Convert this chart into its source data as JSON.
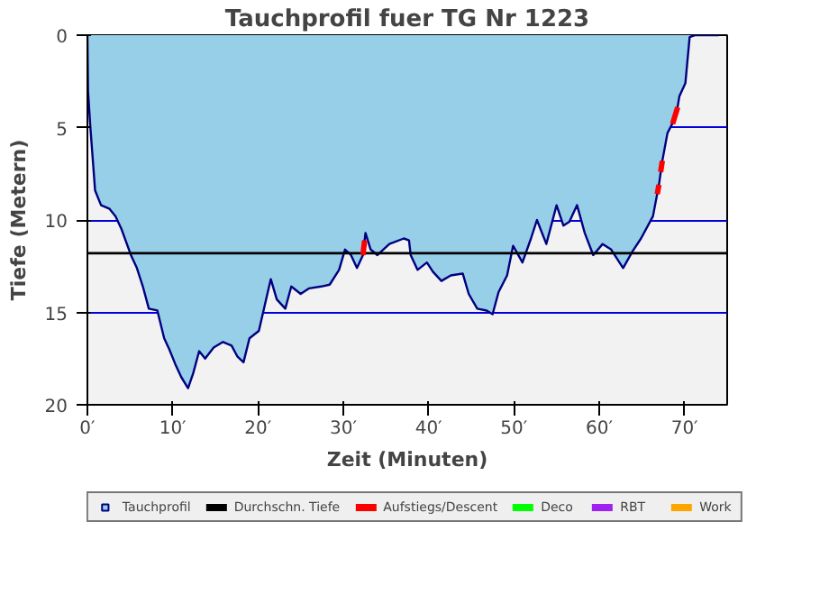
{
  "chart_data": {
    "type": "area",
    "title": "Tauchprofil fuer TG Nr 1223",
    "xlabel": "Zeit (Minuten)",
    "ylabel": "Tiefe (Metern)",
    "xlim": [
      0,
      75
    ],
    "ylim": [
      20,
      0
    ],
    "xticks": [
      {
        "value": 0,
        "label": "0′"
      },
      {
        "value": 10,
        "label": "10′"
      },
      {
        "value": 20,
        "label": "20′"
      },
      {
        "value": 30,
        "label": "30′"
      },
      {
        "value": 40,
        "label": "40′"
      },
      {
        "value": 50,
        "label": "50′"
      },
      {
        "value": 60,
        "label": "60′"
      },
      {
        "value": 70,
        "label": "70′"
      }
    ],
    "yticks": [
      0,
      5,
      10,
      15,
      20
    ],
    "grid": "y",
    "legend": "bottom",
    "series": [
      {
        "name": "Tauchprofil",
        "color": "#97cfe8",
        "x": [
          0,
          0.07,
          0.35,
          0.9,
          1.6,
          2.6,
          3.3,
          4.0,
          5.1,
          5.8,
          6.5,
          7.2,
          8.2,
          9.0,
          9.6,
          10.3,
          11.0,
          11.8,
          12.4,
          13.1,
          13.8,
          14.8,
          15.9,
          16.9,
          17.6,
          18.3,
          19.0,
          20.1,
          20.8,
          21.5,
          22.2,
          23.2,
          23.9,
          25.0,
          26.0,
          27.4,
          28.4,
          29.5,
          30.2,
          30.9,
          31.6,
          32.3,
          32.6,
          33.2,
          34.0,
          35.4,
          37.1,
          37.7,
          37.9,
          38.7,
          39.8,
          40.5,
          41.5,
          42.6,
          44.0,
          44.7,
          45.7,
          46.8,
          47.5,
          48.2,
          49.2,
          49.9,
          51.0,
          52.0,
          52.7,
          53.8,
          55.0,
          55.8,
          56.5,
          57.4,
          58.3,
          59.3,
          60.4,
          61.4,
          62.8,
          63.9,
          64.9,
          66.3,
          67.0,
          67.4,
          68.0,
          69.0,
          69.4,
          70.1,
          70.6,
          71.2,
          74.0
        ],
        "values": [
          0,
          3.0,
          5.0,
          8.4,
          9.2,
          9.4,
          9.8,
          10.5,
          11.9,
          12.6,
          13.6,
          14.8,
          14.9,
          16.4,
          17.0,
          17.8,
          18.5,
          19.1,
          18.3,
          17.1,
          17.5,
          16.9,
          16.6,
          16.8,
          17.4,
          17.7,
          16.4,
          16.0,
          14.6,
          13.2,
          14.3,
          14.8,
          13.6,
          14.0,
          13.7,
          13.6,
          13.5,
          12.7,
          11.6,
          11.9,
          12.6,
          11.9,
          10.7,
          11.6,
          11.9,
          11.3,
          11.0,
          11.1,
          11.9,
          12.7,
          12.3,
          12.8,
          13.3,
          13.0,
          12.9,
          14.0,
          14.8,
          14.9,
          15.1,
          13.9,
          13.0,
          11.4,
          12.3,
          11.0,
          10.0,
          11.3,
          9.2,
          10.3,
          10.1,
          9.2,
          10.7,
          11.9,
          11.3,
          11.6,
          12.6,
          11.7,
          11.0,
          9.8,
          8.1,
          6.8,
          5.3,
          4.4,
          3.3,
          2.6,
          0.1,
          0,
          0
        ]
      },
      {
        "name": "Durchschn. Tiefe",
        "type": "line",
        "color": "#000000",
        "x": [
          0,
          75
        ],
        "values": [
          11.8,
          11.8
        ]
      },
      {
        "name": "Aufstiegs/Descent",
        "type": "line",
        "color": "#ff0000",
        "x": [
          32.3,
          32.5,
          32.55,
          66.8,
          67.0,
          67.1,
          67.2,
          67.4,
          67.5,
          68.6,
          69.2
        ],
        "values": [
          11.9,
          11.1,
          null,
          8.6,
          8.1,
          null,
          7.4,
          6.8,
          null,
          4.8,
          3.9
        ]
      },
      {
        "name": "Deco",
        "type": "line",
        "color": "#00ff00"
      },
      {
        "name": "RBT",
        "type": "line",
        "color": "#a020f0"
      },
      {
        "name": "Work",
        "type": "line",
        "color": "#ffa500"
      }
    ]
  }
}
